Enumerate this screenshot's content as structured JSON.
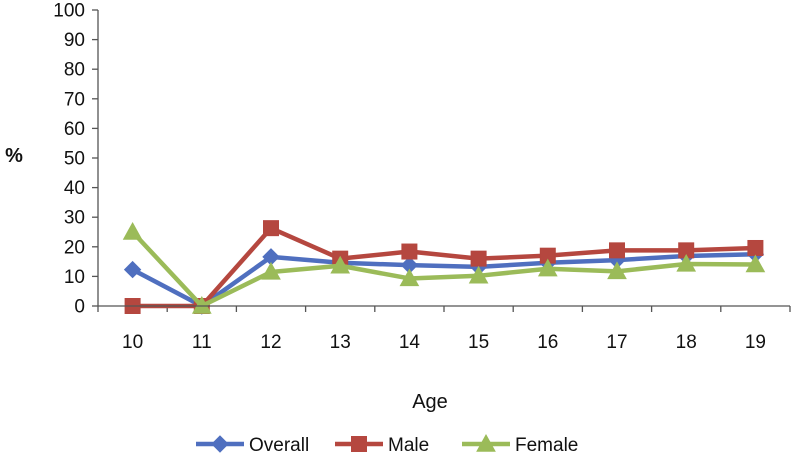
{
  "chart_data": {
    "type": "line",
    "categories": [
      "10",
      "11",
      "12",
      "13",
      "14",
      "15",
      "16",
      "17",
      "18",
      "19"
    ],
    "series": [
      {
        "name": "Overall",
        "color": "#4F6FBF",
        "marker": "diamond",
        "values": [
          12.3,
          0.0,
          16.6,
          14.6,
          13.8,
          13.2,
          14.6,
          15.5,
          16.9,
          17.5
        ]
      },
      {
        "name": "Male",
        "color": "#B5473F",
        "marker": "square",
        "values": [
          0.0,
          0.0,
          26.3,
          16.0,
          18.4,
          16.0,
          17.0,
          18.8,
          18.8,
          19.6
        ]
      },
      {
        "name": "Female",
        "color": "#9BBB59",
        "marker": "triangle",
        "values": [
          25.0,
          0.0,
          11.5,
          13.6,
          9.3,
          10.2,
          12.6,
          11.7,
          14.2,
          14.0
        ]
      }
    ],
    "title": "",
    "xlabel": "Age",
    "ylabel": "%",
    "ylim": [
      0,
      100
    ],
    "yticks": [
      "0",
      "10",
      "20",
      "30",
      "40",
      "50",
      "60",
      "70",
      "80",
      "90",
      "100"
    ],
    "grid": false,
    "legend_position": "bottom"
  }
}
